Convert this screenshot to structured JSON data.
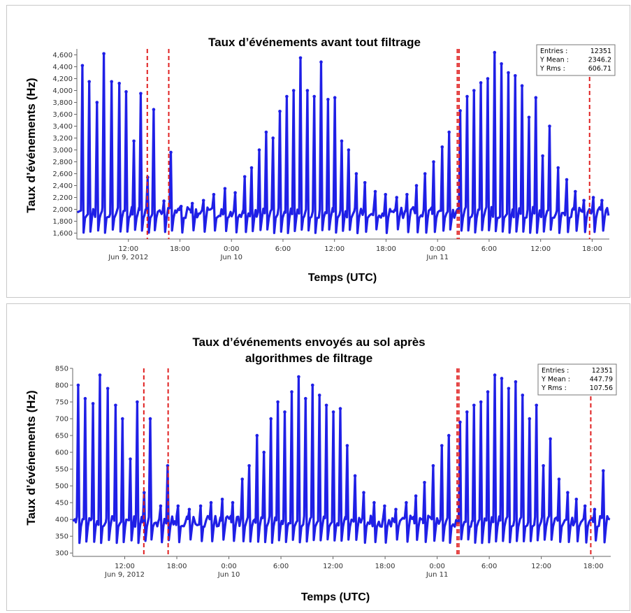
{
  "chart_data": [
    {
      "type": "scatter",
      "title": "Taux d’événements avant tout filtrage",
      "ylabel": "Taux d’événements (Hz)",
      "xlabel": "Temps (UTC)",
      "ylim": [
        1500,
        4700
      ],
      "xlim_hours": [
        6,
        68
      ],
      "yticks": [
        "1,600",
        "1,800",
        "2,000",
        "2,200",
        "2,400",
        "2,600",
        "2,800",
        "3,000",
        "3,200",
        "3,400",
        "3,600",
        "3,800",
        "4,000",
        "4,200",
        "4,400",
        "4,600"
      ],
      "xticks": [
        {
          "label": "12:00",
          "sub": "Jun 9, 2012"
        },
        {
          "label": "18:00",
          "sub": ""
        },
        {
          "label": "0:00",
          "sub": "Jun 10"
        },
        {
          "label": "6:00",
          "sub": ""
        },
        {
          "label": "12:00",
          "sub": ""
        },
        {
          "label": "18:00",
          "sub": ""
        },
        {
          "label": "0:00",
          "sub": "Jun 11"
        },
        {
          "label": "6:00",
          "sub": ""
        },
        {
          "label": "12:00",
          "sub": ""
        },
        {
          "label": "18:00",
          "sub": ""
        }
      ],
      "stats": [
        {
          "label": "Entries :",
          "value": "12351"
        },
        {
          "label": "Y Mean :",
          "value": "2346.2"
        },
        {
          "label": "Y Rms :",
          "value": "606.71"
        }
      ],
      "baseline": 1950,
      "spike_min": 1600,
      "series_color": "#1f1fe6",
      "marker_color": "#e02020",
      "markers_hours": [
        14.2,
        16.7,
        50.3,
        50.5,
        65.7
      ],
      "peaks": [
        {
          "x": 6.7,
          "y": 4420
        },
        {
          "x": 7.5,
          "y": 4150
        },
        {
          "x": 8.4,
          "y": 3800
        },
        {
          "x": 9.2,
          "y": 4620
        },
        {
          "x": 10.1,
          "y": 4150
        },
        {
          "x": 11.0,
          "y": 4120
        },
        {
          "x": 11.8,
          "y": 3980
        },
        {
          "x": 12.7,
          "y": 3150
        },
        {
          "x": 13.5,
          "y": 3950
        },
        {
          "x": 14.3,
          "y": 2540
        },
        {
          "x": 15.0,
          "y": 3680
        },
        {
          "x": 16.2,
          "y": 2140
        },
        {
          "x": 17.0,
          "y": 2960
        },
        {
          "x": 18.2,
          "y": 2050
        },
        {
          "x": 19.5,
          "y": 2100
        },
        {
          "x": 20.8,
          "y": 2150
        },
        {
          "x": 22.0,
          "y": 2250
        },
        {
          "x": 23.3,
          "y": 2350
        },
        {
          "x": 24.5,
          "y": 2280
        },
        {
          "x": 25.6,
          "y": 2550
        },
        {
          "x": 26.4,
          "y": 2700
        },
        {
          "x": 27.3,
          "y": 3000
        },
        {
          "x": 28.1,
          "y": 3300
        },
        {
          "x": 28.9,
          "y": 3200
        },
        {
          "x": 29.7,
          "y": 3650
        },
        {
          "x": 30.5,
          "y": 3900
        },
        {
          "x": 31.3,
          "y": 4000
        },
        {
          "x": 32.1,
          "y": 4550
        },
        {
          "x": 32.9,
          "y": 4000
        },
        {
          "x": 33.7,
          "y": 3900
        },
        {
          "x": 34.5,
          "y": 4480
        },
        {
          "x": 35.3,
          "y": 3850
        },
        {
          "x": 36.1,
          "y": 3880
        },
        {
          "x": 36.9,
          "y": 3150
        },
        {
          "x": 37.7,
          "y": 3000
        },
        {
          "x": 38.6,
          "y": 2600
        },
        {
          "x": 39.6,
          "y": 2450
        },
        {
          "x": 40.8,
          "y": 2300
        },
        {
          "x": 42.0,
          "y": 2250
        },
        {
          "x": 43.3,
          "y": 2200
        },
        {
          "x": 44.5,
          "y": 2250
        },
        {
          "x": 45.6,
          "y": 2400
        },
        {
          "x": 46.6,
          "y": 2600
        },
        {
          "x": 47.6,
          "y": 2800
        },
        {
          "x": 48.6,
          "y": 3050
        },
        {
          "x": 49.4,
          "y": 3300
        },
        {
          "x": 50.7,
          "y": 3660
        },
        {
          "x": 51.5,
          "y": 3900
        },
        {
          "x": 52.3,
          "y": 4000
        },
        {
          "x": 53.1,
          "y": 4130
        },
        {
          "x": 53.9,
          "y": 4200
        },
        {
          "x": 54.7,
          "y": 4640
        },
        {
          "x": 55.5,
          "y": 4450
        },
        {
          "x": 56.3,
          "y": 4300
        },
        {
          "x": 57.1,
          "y": 4250
        },
        {
          "x": 57.9,
          "y": 4080
        },
        {
          "x": 58.7,
          "y": 3550
        },
        {
          "x": 59.5,
          "y": 3880
        },
        {
          "x": 60.3,
          "y": 2900
        },
        {
          "x": 61.1,
          "y": 3400
        },
        {
          "x": 62.1,
          "y": 2700
        },
        {
          "x": 63.1,
          "y": 2500
        },
        {
          "x": 64.1,
          "y": 2300
        },
        {
          "x": 65.1,
          "y": 2150
        },
        {
          "x": 66.2,
          "y": 2200
        },
        {
          "x": 67.2,
          "y": 2150
        }
      ]
    },
    {
      "type": "scatter",
      "title": "Taux d’événements envoyés au sol après",
      "title_line2": "algorithmes de filtrage",
      "ylabel": "Taux d’événements (Hz)",
      "xlabel": "Temps (UTC)",
      "ylim": [
        290,
        850
      ],
      "xlim_hours": [
        6,
        68
      ],
      "yticks": [
        "300",
        "350",
        "400",
        "450",
        "500",
        "550",
        "600",
        "650",
        "700",
        "750",
        "800",
        "850"
      ],
      "xticks": [
        {
          "label": "12:00",
          "sub": "Jun 9, 2012"
        },
        {
          "label": "18:00",
          "sub": ""
        },
        {
          "label": "0:00",
          "sub": "Jun 10"
        },
        {
          "label": "6:00",
          "sub": ""
        },
        {
          "label": "12:00",
          "sub": ""
        },
        {
          "label": "18:00",
          "sub": ""
        },
        {
          "label": "0:00",
          "sub": "Jun 11"
        },
        {
          "label": "6:00",
          "sub": ""
        },
        {
          "label": "12:00",
          "sub": ""
        },
        {
          "label": "18:00",
          "sub": ""
        }
      ],
      "stats": [
        {
          "label": "Entries :",
          "value": "12351"
        },
        {
          "label": "Y Mean :",
          "value": "447.79"
        },
        {
          "label": "Y Rms :",
          "value": "107.56"
        }
      ],
      "baseline": 395,
      "spike_min": 330,
      "series_color": "#1f1fe6",
      "marker_color": "#e02020",
      "markers_hours": [
        14.2,
        17.0,
        50.3,
        50.5,
        65.7
      ],
      "peaks": [
        {
          "x": 6.7,
          "y": 800
        },
        {
          "x": 7.5,
          "y": 760
        },
        {
          "x": 8.4,
          "y": 745
        },
        {
          "x": 9.2,
          "y": 830
        },
        {
          "x": 10.1,
          "y": 790
        },
        {
          "x": 11.0,
          "y": 740
        },
        {
          "x": 11.8,
          "y": 700
        },
        {
          "x": 12.7,
          "y": 580
        },
        {
          "x": 13.5,
          "y": 750
        },
        {
          "x": 14.3,
          "y": 480
        },
        {
          "x": 15.0,
          "y": 700
        },
        {
          "x": 16.2,
          "y": 440
        },
        {
          "x": 17.0,
          "y": 560
        },
        {
          "x": 18.2,
          "y": 440
        },
        {
          "x": 19.5,
          "y": 430
        },
        {
          "x": 20.8,
          "y": 440
        },
        {
          "x": 22.0,
          "y": 450
        },
        {
          "x": 23.3,
          "y": 460
        },
        {
          "x": 24.5,
          "y": 450
        },
        {
          "x": 25.6,
          "y": 520
        },
        {
          "x": 26.4,
          "y": 560
        },
        {
          "x": 27.3,
          "y": 650
        },
        {
          "x": 28.1,
          "y": 600
        },
        {
          "x": 28.9,
          "y": 700
        },
        {
          "x": 29.7,
          "y": 750
        },
        {
          "x": 30.5,
          "y": 720
        },
        {
          "x": 31.3,
          "y": 780
        },
        {
          "x": 32.1,
          "y": 825
        },
        {
          "x": 32.9,
          "y": 760
        },
        {
          "x": 33.7,
          "y": 800
        },
        {
          "x": 34.5,
          "y": 770
        },
        {
          "x": 35.3,
          "y": 740
        },
        {
          "x": 36.1,
          "y": 720
        },
        {
          "x": 36.9,
          "y": 730
        },
        {
          "x": 37.7,
          "y": 620
        },
        {
          "x": 38.6,
          "y": 530
        },
        {
          "x": 39.6,
          "y": 480
        },
        {
          "x": 40.8,
          "y": 450
        },
        {
          "x": 42.0,
          "y": 440
        },
        {
          "x": 43.3,
          "y": 430
        },
        {
          "x": 44.5,
          "y": 450
        },
        {
          "x": 45.6,
          "y": 470
        },
        {
          "x": 46.6,
          "y": 510
        },
        {
          "x": 47.6,
          "y": 560
        },
        {
          "x": 48.6,
          "y": 620
        },
        {
          "x": 49.4,
          "y": 650
        },
        {
          "x": 50.7,
          "y": 690
        },
        {
          "x": 51.5,
          "y": 720
        },
        {
          "x": 52.3,
          "y": 740
        },
        {
          "x": 53.1,
          "y": 750
        },
        {
          "x": 53.9,
          "y": 780
        },
        {
          "x": 54.7,
          "y": 830
        },
        {
          "x": 55.5,
          "y": 820
        },
        {
          "x": 56.3,
          "y": 790
        },
        {
          "x": 57.1,
          "y": 810
        },
        {
          "x": 57.9,
          "y": 770
        },
        {
          "x": 58.7,
          "y": 700
        },
        {
          "x": 59.5,
          "y": 740
        },
        {
          "x": 60.3,
          "y": 560
        },
        {
          "x": 61.1,
          "y": 640
        },
        {
          "x": 62.1,
          "y": 520
        },
        {
          "x": 63.1,
          "y": 480
        },
        {
          "x": 64.1,
          "y": 460
        },
        {
          "x": 65.1,
          "y": 440
        },
        {
          "x": 66.2,
          "y": 430
        },
        {
          "x": 67.2,
          "y": 545
        }
      ]
    }
  ]
}
